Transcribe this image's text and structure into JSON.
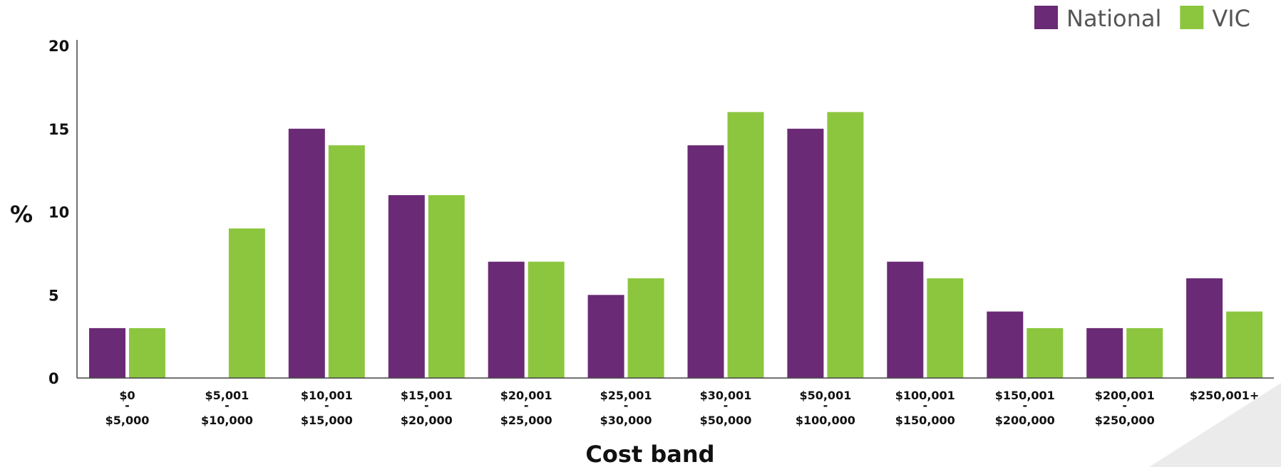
{
  "chart_data": {
    "type": "bar",
    "xlabel": "Cost band",
    "ylabel": "%",
    "ylim": [
      0,
      20
    ],
    "yticks": [
      0,
      5,
      10,
      15,
      20
    ],
    "grid": false,
    "legend_position": "top-right",
    "categories": [
      [
        "$0",
        "-",
        "$5,000"
      ],
      [
        "$5,001",
        "-",
        "$10,000"
      ],
      [
        "$10,001",
        "-",
        "$15,000"
      ],
      [
        "$15,001",
        "-",
        "$20,000"
      ],
      [
        "$20,001",
        "-",
        "$25,000"
      ],
      [
        "$25,001",
        "-",
        "$30,000"
      ],
      [
        "$30,001",
        "-",
        "$50,000"
      ],
      [
        "$50,001",
        "-",
        "$100,000"
      ],
      [
        "$100,001",
        "-",
        "$150,000"
      ],
      [
        "$150,001",
        "-",
        "$200,000"
      ],
      [
        "$200,001",
        "-",
        "$250,000"
      ],
      [
        "$250,001+"
      ]
    ],
    "series": [
      {
        "name": "National",
        "color": "#6b2a75",
        "values": [
          3,
          0,
          15,
          11,
          7,
          5,
          14,
          15,
          7,
          4,
          3,
          6
        ]
      },
      {
        "name": "VIC",
        "color": "#8cc63f",
        "values": [
          3,
          9,
          14,
          11,
          7,
          6,
          16,
          16,
          6,
          3,
          3,
          4
        ]
      }
    ]
  }
}
